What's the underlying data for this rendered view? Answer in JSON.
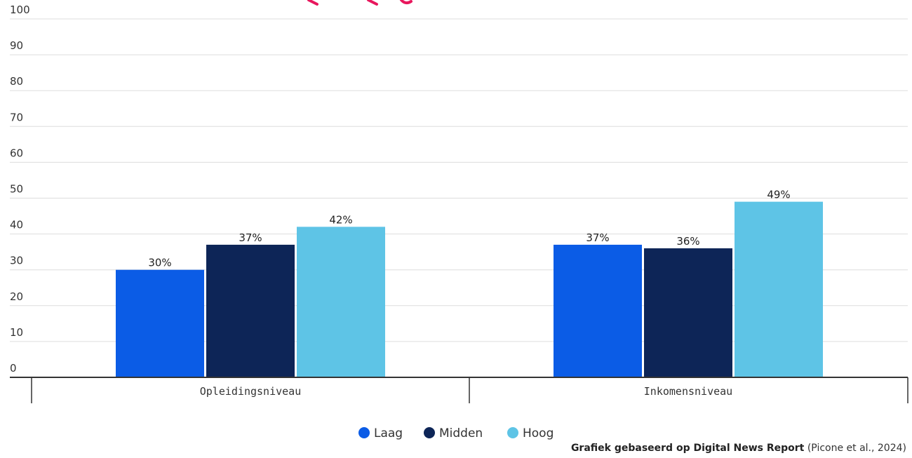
{
  "colors": {
    "laag": "#0b5ce6",
    "midden": "#0d2557",
    "hoog": "#5ec4e6",
    "title": "#e8175d",
    "grid": "#dddddd",
    "axis": "#333333"
  },
  "chart_data": {
    "type": "bar",
    "categories": [
      "Opleidingsniveau",
      "Inkomensniveau"
    ],
    "series": [
      {
        "name": "Laag",
        "values": [
          30,
          37
        ],
        "labels": [
          "30%",
          "37%"
        ]
      },
      {
        "name": "Midden",
        "values": [
          37,
          36
        ],
        "labels": [
          "37%",
          "36%"
        ]
      },
      {
        "name": "Hoog",
        "values": [
          42,
          49
        ],
        "labels": [
          "42%",
          "49%"
        ]
      }
    ],
    "ylim": [
      0,
      100
    ],
    "yticks": [
      0,
      10,
      20,
      30,
      40,
      50,
      60,
      70,
      80,
      90,
      100
    ],
    "grid": true,
    "legend_position": "bottom-center"
  },
  "source": {
    "bold": "Grafiek gebaseerd op Digital News Report",
    "rest": " (Picone et al., 2024)"
  }
}
